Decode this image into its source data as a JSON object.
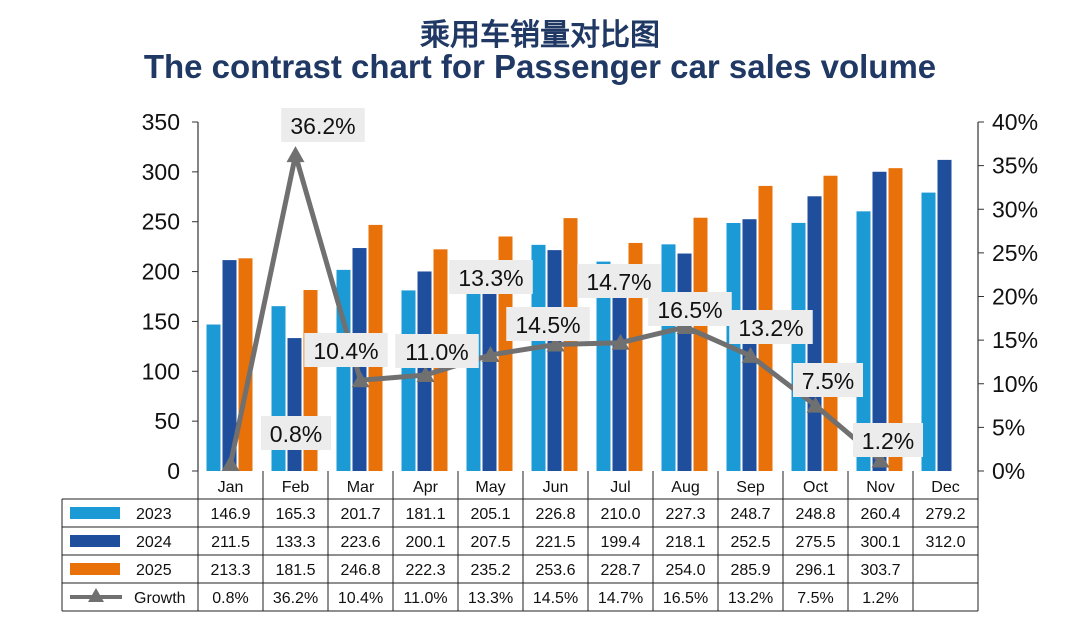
{
  "title_cn": "乘用车销量对比图",
  "title_en": "The contrast chart for Passenger car sales volume",
  "chart_data": {
    "type": "bar",
    "categories": [
      "Jan",
      "Feb",
      "Mar",
      "Apr",
      "May",
      "Jun",
      "Jul",
      "Aug",
      "Sep",
      "Oct",
      "Nov",
      "Dec"
    ],
    "series": [
      {
        "name": "2023",
        "color": "#1b9ad6",
        "values": [
          146.9,
          165.3,
          201.7,
          181.1,
          205.1,
          226.8,
          210.0,
          227.3,
          248.7,
          248.8,
          260.4,
          279.2
        ],
        "labels": [
          "146.9",
          "165.3",
          "201.7",
          "181.1",
          "205.1",
          "226.8",
          "210.0",
          "227.3",
          "248.7",
          "248.8",
          "260.4",
          "279.2"
        ]
      },
      {
        "name": "2024",
        "color": "#1f4e9c",
        "values": [
          211.5,
          133.3,
          223.6,
          200.1,
          207.5,
          221.5,
          199.4,
          218.1,
          252.5,
          275.5,
          300.1,
          312.0
        ],
        "labels": [
          "211.5",
          "133.3",
          "223.6",
          "200.1",
          "207.5",
          "221.5",
          "199.4",
          "218.1",
          "252.5",
          "275.5",
          "300.1",
          "312.0"
        ]
      },
      {
        "name": "2025",
        "color": "#e8710a",
        "values": [
          213.3,
          181.5,
          246.8,
          222.3,
          235.2,
          253.6,
          228.7,
          254.0,
          285.9,
          296.1,
          303.7,
          null
        ],
        "labels": [
          "213.3",
          "181.5",
          "246.8",
          "222.3",
          "235.2",
          "253.6",
          "228.7",
          "254.0",
          "285.9",
          "296.1",
          "303.7",
          ""
        ]
      }
    ],
    "line_series": {
      "name": "Growth",
      "color": "#707070",
      "axis": "right",
      "values": [
        0.8,
        36.2,
        10.4,
        11.0,
        13.3,
        14.5,
        14.7,
        16.5,
        13.2,
        7.5,
        1.2,
        null
      ],
      "labels": [
        "0.8%",
        "36.2%",
        "10.4%",
        "11.0%",
        "13.3%",
        "14.5%",
        "14.7%",
        "16.5%",
        "13.2%",
        "7.5%",
        "1.2%",
        ""
      ]
    },
    "left_axis": {
      "min": 0,
      "max": 350,
      "ticks": [
        "0",
        "50",
        "100",
        "150",
        "200",
        "250",
        "300",
        "350"
      ]
    },
    "right_axis": {
      "min": 0,
      "max": 40,
      "ticks": [
        "0%",
        "5%",
        "10%",
        "15%",
        "20%",
        "25%",
        "30%",
        "35%",
        "40%"
      ]
    },
    "data_table": true
  }
}
